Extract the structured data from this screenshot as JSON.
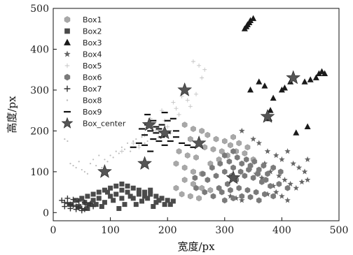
{
  "chart_data": {
    "type": "scatter",
    "xlabel": "宽度/px",
    "ylabel": "高度/px",
    "xlim": [
      0,
      500
    ],
    "ylim": [
      -20,
      500
    ],
    "xticks": [
      0,
      100,
      200,
      300,
      400,
      500
    ],
    "yticks": [
      0,
      100,
      200,
      300,
      400,
      500
    ],
    "grid": false,
    "legend_position": "top-left",
    "series": [
      {
        "name": "Box1",
        "marker": "hexagon",
        "color": "#a8a8a8"
      },
      {
        "name": "Box2",
        "marker": "square",
        "color": "#4a4a4a"
      },
      {
        "name": "Box3",
        "marker": "triangle",
        "color": "#1a1a1a"
      },
      {
        "name": "Box4",
        "marker": "star",
        "color": "#666666"
      },
      {
        "name": "Box5",
        "marker": "thin-cross",
        "color": "#c4c4c4"
      },
      {
        "name": "Box6",
        "marker": "hexagon",
        "color": "#7a7a7a"
      },
      {
        "name": "Box7",
        "marker": "plus",
        "color": "#333333"
      },
      {
        "name": "Box8",
        "marker": "dot",
        "color": "#bdbdbd"
      },
      {
        "name": "Box9",
        "marker": "dash",
        "color": "#111111"
      },
      {
        "name": "Box_center",
        "marker": "big-star",
        "color": "#555555"
      }
    ],
    "points": {
      "Box1": [
        [
          230,
          215
        ],
        [
          245,
          205
        ],
        [
          260,
          200
        ],
        [
          270,
          190
        ],
        [
          285,
          180
        ],
        [
          300,
          175
        ],
        [
          315,
          185
        ],
        [
          240,
          180
        ],
        [
          255,
          170
        ],
        [
          265,
          160
        ],
        [
          280,
          155
        ],
        [
          295,
          150
        ],
        [
          310,
          165
        ],
        [
          325,
          170
        ],
        [
          340,
          160
        ],
        [
          220,
          150
        ],
        [
          235,
          140
        ],
        [
          250,
          135
        ],
        [
          215,
          120
        ],
        [
          230,
          110
        ],
        [
          245,
          100
        ],
        [
          260,
          95
        ],
        [
          275,
          120
        ],
        [
          290,
          130
        ],
        [
          305,
          140
        ],
        [
          320,
          150
        ],
        [
          335,
          145
        ],
        [
          350,
          130
        ],
        [
          230,
          80
        ],
        [
          245,
          70
        ],
        [
          260,
          60
        ],
        [
          275,
          55
        ],
        [
          215,
          60
        ],
        [
          225,
          45
        ],
        [
          240,
          40
        ],
        [
          255,
          35
        ]
      ],
      "Box2": [
        [
          40,
          30
        ],
        [
          50,
          35
        ],
        [
          60,
          40
        ],
        [
          70,
          45
        ],
        [
          80,
          50
        ],
        [
          90,
          55
        ],
        [
          100,
          60
        ],
        [
          110,
          65
        ],
        [
          120,
          70
        ],
        [
          130,
          65
        ],
        [
          140,
          60
        ],
        [
          150,
          55
        ],
        [
          160,
          50
        ],
        [
          170,
          45
        ],
        [
          180,
          40
        ],
        [
          190,
          35
        ],
        [
          200,
          30
        ],
        [
          210,
          28
        ],
        [
          30,
          20
        ],
        [
          45,
          15
        ],
        [
          60,
          10
        ],
        [
          75,
          20
        ],
        [
          90,
          25
        ],
        [
          105,
          30
        ],
        [
          120,
          35
        ],
        [
          135,
          40
        ],
        [
          150,
          45
        ],
        [
          165,
          35
        ],
        [
          180,
          25
        ],
        [
          195,
          20
        ],
        [
          55,
          25
        ],
        [
          85,
          15
        ],
        [
          115,
          10
        ],
        [
          145,
          20
        ],
        [
          175,
          15
        ],
        [
          205,
          20
        ],
        [
          70,
          30
        ],
        [
          100,
          40
        ],
        [
          130,
          50
        ],
        [
          160,
          40
        ],
        [
          125,
          20
        ],
        [
          95,
          50
        ],
        [
          110,
          45
        ],
        [
          140,
          35
        ],
        [
          185,
          30
        ],
        [
          65,
          20
        ],
        [
          155,
          28
        ],
        [
          170,
          55
        ],
        [
          120,
          55
        ],
        [
          80,
          35
        ]
      ],
      "Box3": [
        [
          335,
          450
        ],
        [
          340,
          460
        ],
        [
          345,
          470
        ],
        [
          350,
          475
        ],
        [
          338,
          455
        ],
        [
          343,
          465
        ],
        [
          345,
          300
        ],
        [
          360,
          320
        ],
        [
          370,
          310
        ],
        [
          375,
          240
        ],
        [
          380,
          250
        ],
        [
          378,
          230
        ],
        [
          400,
          300
        ],
        [
          405,
          305
        ],
        [
          415,
          320
        ],
        [
          420,
          330
        ],
        [
          425,
          195
        ],
        [
          440,
          320
        ],
        [
          450,
          325
        ],
        [
          460,
          330
        ],
        [
          465,
          340
        ],
        [
          470,
          345
        ],
        [
          475,
          340
        ],
        [
          445,
          210
        ],
        [
          385,
          280
        ]
      ],
      "Box4": [
        [
          330,
          200
        ],
        [
          350,
          180
        ],
        [
          360,
          170
        ],
        [
          375,
          150
        ],
        [
          390,
          140
        ],
        [
          400,
          130
        ],
        [
          410,
          150
        ],
        [
          420,
          120
        ],
        [
          430,
          110
        ],
        [
          440,
          100
        ],
        [
          445,
          130
        ],
        [
          370,
          120
        ],
        [
          380,
          100
        ],
        [
          395,
          90
        ],
        [
          405,
          80
        ],
        [
          415,
          70
        ],
        [
          425,
          60
        ],
        [
          390,
          50
        ],
        [
          400,
          40
        ],
        [
          410,
          30
        ],
        [
          345,
          110
        ],
        [
          355,
          95
        ],
        [
          365,
          85
        ],
        [
          385,
          65
        ],
        [
          375,
          45
        ],
        [
          435,
          75
        ],
        [
          445,
          80
        ],
        [
          310,
          40
        ],
        [
          320,
          35
        ],
        [
          330,
          30
        ]
      ],
      "Box5": [
        [
          120,
          150
        ],
        [
          140,
          170
        ],
        [
          160,
          190
        ],
        [
          180,
          200
        ],
        [
          200,
          210
        ],
        [
          220,
          240
        ],
        [
          240,
          260
        ],
        [
          250,
          290
        ],
        [
          260,
          330
        ],
        [
          265,
          350
        ],
        [
          245,
          370
        ],
        [
          255,
          360
        ],
        [
          170,
          230
        ],
        [
          190,
          250
        ],
        [
          210,
          270
        ],
        [
          230,
          300
        ],
        [
          150,
          160
        ],
        [
          175,
          215
        ],
        [
          195,
          225
        ],
        [
          215,
          255
        ],
        [
          235,
          275
        ],
        [
          225,
          285
        ],
        [
          205,
          195
        ],
        [
          185,
          185
        ]
      ],
      "Box6": [
        [
          270,
          80
        ],
        [
          285,
          90
        ],
        [
          300,
          100
        ],
        [
          315,
          110
        ],
        [
          330,
          120
        ],
        [
          345,
          115
        ],
        [
          360,
          105
        ],
        [
          375,
          95
        ],
        [
          290,
          60
        ],
        [
          305,
          70
        ],
        [
          320,
          80
        ],
        [
          335,
          90
        ],
        [
          350,
          85
        ],
        [
          365,
          75
        ],
        [
          380,
          65
        ],
        [
          280,
          40
        ],
        [
          295,
          50
        ],
        [
          310,
          55
        ],
        [
          325,
          60
        ],
        [
          340,
          55
        ],
        [
          355,
          50
        ],
        [
          370,
          45
        ],
        [
          385,
          40
        ],
        [
          300,
          30
        ],
        [
          315,
          35
        ],
        [
          330,
          40
        ],
        [
          345,
          38
        ],
        [
          360,
          30
        ],
        [
          250,
          60
        ],
        [
          265,
          50
        ],
        [
          278,
          110
        ],
        [
          292,
          120
        ],
        [
          308,
          125
        ],
        [
          322,
          135
        ],
        [
          338,
          130
        ],
        [
          352,
          125
        ],
        [
          368,
          115
        ],
        [
          385,
          110
        ],
        [
          398,
          100
        ],
        [
          262,
          95
        ],
        [
          248,
          85
        ],
        [
          395,
          70
        ],
        [
          410,
          60
        ],
        [
          312,
          90
        ],
        [
          328,
          100
        ],
        [
          342,
          105
        ],
        [
          358,
          95
        ],
        [
          372,
          80
        ],
        [
          300,
          140
        ],
        [
          315,
          150
        ]
      ],
      "Box7": [
        [
          15,
          30
        ],
        [
          20,
          25
        ],
        [
          25,
          22
        ],
        [
          30,
          20
        ],
        [
          35,
          18
        ],
        [
          40,
          15
        ],
        [
          45,
          12
        ],
        [
          50,
          10
        ],
        [
          25,
          35
        ],
        [
          35,
          32
        ],
        [
          45,
          28
        ],
        [
          55,
          25
        ],
        [
          30,
          10
        ],
        [
          40,
          8
        ],
        [
          50,
          5
        ],
        [
          20,
          15
        ],
        [
          60,
          18
        ],
        [
          65,
          22
        ],
        [
          70,
          15
        ],
        [
          55,
          8
        ]
      ],
      "Box8": [
        [
          20,
          180
        ],
        [
          25,
          175
        ],
        [
          30,
          120
        ],
        [
          35,
          115
        ],
        [
          40,
          110
        ],
        [
          45,
          125
        ],
        [
          50,
          105
        ],
        [
          55,
          100
        ],
        [
          60,
          95
        ],
        [
          65,
          120
        ],
        [
          70,
          130
        ],
        [
          75,
          115
        ],
        [
          80,
          140
        ],
        [
          85,
          110
        ],
        [
          90,
          130
        ],
        [
          95,
          125
        ],
        [
          100,
          140
        ],
        [
          105,
          135
        ],
        [
          110,
          150
        ],
        [
          115,
          145
        ],
        [
          120,
          160
        ],
        [
          125,
          155
        ],
        [
          130,
          170
        ],
        [
          135,
          150
        ],
        [
          140,
          175
        ],
        [
          145,
          180
        ],
        [
          150,
          165
        ],
        [
          155,
          185
        ],
        [
          160,
          170
        ],
        [
          165,
          175
        ]
      ],
      "Box9": [
        [
          140,
          160
        ],
        [
          150,
          170
        ],
        [
          160,
          190
        ],
        [
          170,
          200
        ],
        [
          180,
          210
        ],
        [
          190,
          215
        ],
        [
          200,
          225
        ],
        [
          210,
          230
        ],
        [
          175,
          180
        ],
        [
          185,
          175
        ],
        [
          195,
          165
        ],
        [
          205,
          175
        ],
        [
          215,
          185
        ],
        [
          160,
          165
        ],
        [
          170,
          150
        ],
        [
          180,
          195
        ],
        [
          190,
          185
        ],
        [
          200,
          195
        ],
        [
          225,
          170
        ],
        [
          235,
          165
        ],
        [
          245,
          160
        ],
        [
          155,
          205
        ],
        [
          165,
          215
        ],
        [
          175,
          225
        ],
        [
          185,
          205
        ],
        [
          195,
          245
        ],
        [
          165,
          240
        ],
        [
          215,
          200
        ]
      ],
      "Box_center": [
        [
          90,
          100
        ],
        [
          160,
          120
        ],
        [
          195,
          195
        ],
        [
          230,
          300
        ],
        [
          255,
          170
        ],
        [
          315,
          85
        ],
        [
          420,
          330
        ],
        [
          375,
          235
        ],
        [
          168,
          215
        ]
      ]
    }
  }
}
